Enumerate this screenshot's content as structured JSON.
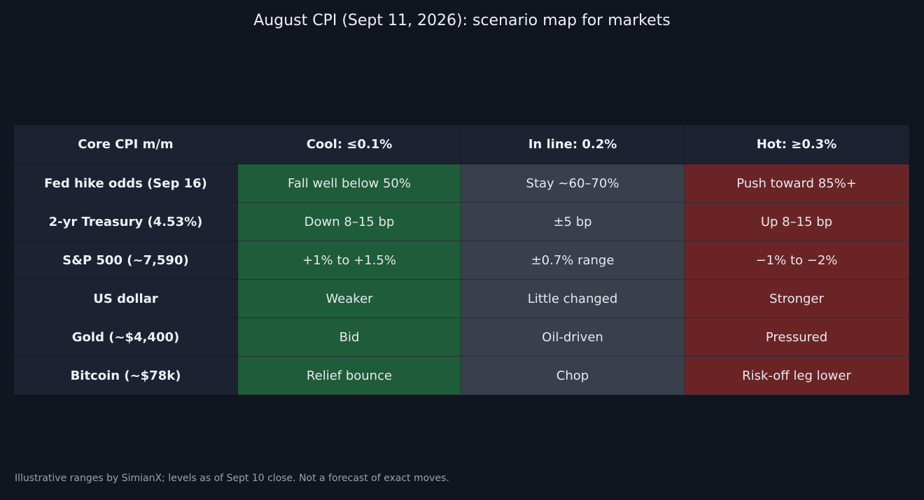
{
  "chart_data": {
    "type": "table",
    "title": "August CPI (Sept 11, 2026): scenario map for markets",
    "columns": [
      "Core CPI m/m",
      "Cool: ≤0.1%",
      "In line: 0.2%",
      "Hot: ≥0.3%"
    ],
    "rows": [
      {
        "label": "Fed hike odds (Sep 16)",
        "cells": [
          "Fall well below 50%",
          "Stay ~60–70%",
          "Push toward 85%+"
        ]
      },
      {
        "label": "2-yr Treasury (4.53%)",
        "cells": [
          "Down 8–15 bp",
          "±5 bp",
          "Up 8–15 bp"
        ]
      },
      {
        "label": "S&P 500 (~7,590)",
        "cells": [
          "+1% to +1.5%",
          "±0.7% range",
          "−1% to −2%"
        ]
      },
      {
        "label": "US dollar",
        "cells": [
          "Weaker",
          "Little changed",
          "Stronger"
        ]
      },
      {
        "label": "Gold (~$4,400)",
        "cells": [
          "Bid",
          "Oil-driven",
          "Pressured"
        ]
      },
      {
        "label": "Bitcoin (~$78k)",
        "cells": [
          "Relief bounce",
          "Chop",
          "Risk-off leg lower"
        ]
      }
    ],
    "scenario_colors": [
      "#1f5c3a",
      "#3a3f4c",
      "#6b2426"
    ],
    "footnote": "Illustrative ranges by SimianX; levels as of Sept 10 close. Not a forecast of exact moves."
  }
}
